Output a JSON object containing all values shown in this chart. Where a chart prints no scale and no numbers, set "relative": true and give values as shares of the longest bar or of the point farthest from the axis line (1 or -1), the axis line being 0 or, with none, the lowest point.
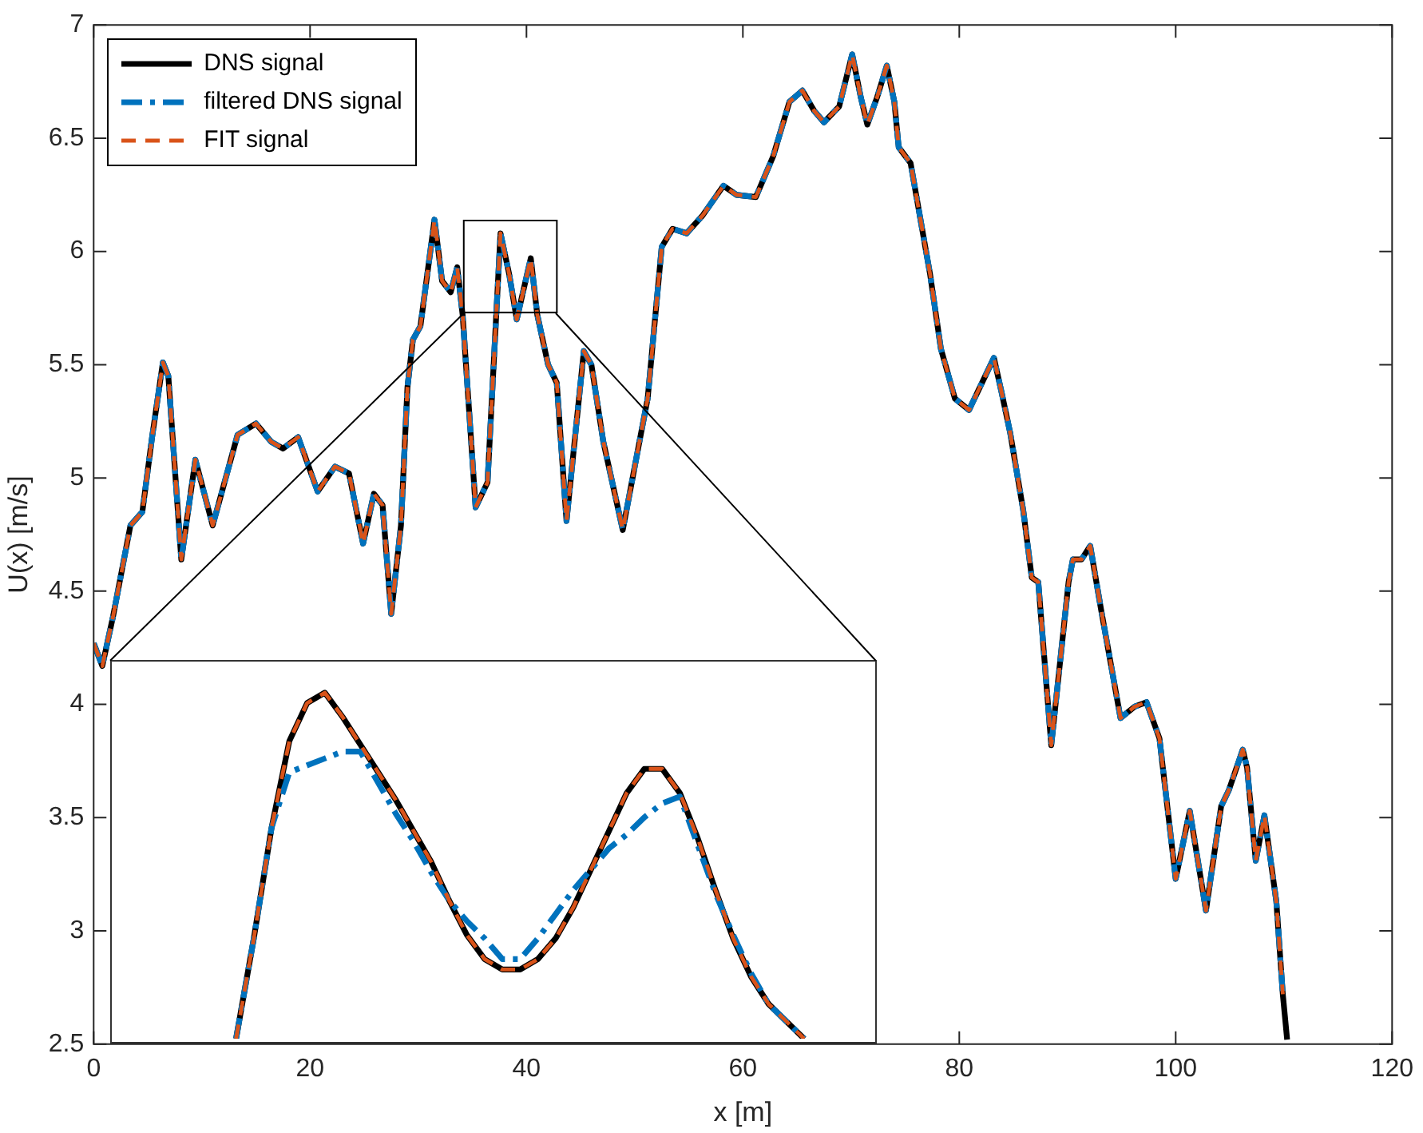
{
  "chart_data": [
    {
      "type": "line",
      "xlabel": "x [m]",
      "ylabel": "U(x) [m/s]",
      "xlim": [
        0,
        120
      ],
      "xticks": [
        0,
        20,
        40,
        60,
        80,
        100,
        120
      ],
      "ylim": [
        2.5,
        7
      ],
      "yticks": [
        2.5,
        3,
        3.5,
        4,
        4.5,
        5,
        5.5,
        6,
        6.5,
        7
      ],
      "grid": false,
      "legend": "top left",
      "marker": "none",
      "x": [
        0,
        0.8,
        1.8,
        3.4,
        4.5,
        5.4,
        6.4,
        6.9,
        8.1,
        9.4,
        11.0,
        13.3,
        15.0,
        16.4,
        17.5,
        18.9,
        20.7,
        22.3,
        23.6,
        24.9,
        25.9,
        26.7,
        27.5,
        28.4,
        29.0,
        29.5,
        30.2,
        31.5,
        32.2,
        33.0,
        33.6,
        34.1,
        35.3,
        36.4,
        37.6,
        38.4,
        39.1,
        40.4,
        41.0,
        42.0,
        42.8,
        43.7,
        45.3,
        46.0,
        47.1,
        48.9,
        50.6,
        51.2,
        52.5,
        53.5,
        54.8,
        56.3,
        58.2,
        59.4,
        61.2,
        62.8,
        64.3,
        65.5,
        66.6,
        67.5,
        68.9,
        70.1,
        70.9,
        71.5,
        72.4,
        73.3,
        74.0,
        74.4,
        75.5,
        76.6,
        77.3,
        78.3,
        79.6,
        80.9,
        83.2,
        83.9,
        84.7,
        85.9,
        86.7,
        87.3,
        88.5,
        90.1,
        90.5,
        91.3,
        92.1,
        93.1,
        94.9,
        96.2,
        97.3,
        98.5,
        100.0,
        101.3,
        102.8,
        104.2,
        104.9,
        106.2,
        106.6,
        107.4,
        108.2,
        109.3,
        109.9,
        110.3
      ],
      "series": [
        {
          "name": "DNS signal",
          "color": "#000000",
          "line_style": "solid",
          "values": [
            4.27,
            4.17,
            4.39,
            4.79,
            4.85,
            5.18,
            5.51,
            5.45,
            4.64,
            5.08,
            4.79,
            5.19,
            5.24,
            5.16,
            5.13,
            5.18,
            4.94,
            5.05,
            5.02,
            4.71,
            4.93,
            4.88,
            4.4,
            4.79,
            5.4,
            5.61,
            5.67,
            6.14,
            5.87,
            5.82,
            5.93,
            5.72,
            4.87,
            4.98,
            6.08,
            5.9,
            5.7,
            5.97,
            5.72,
            5.5,
            5.42,
            4.81,
            5.56,
            5.5,
            5.16,
            4.77,
            5.2,
            5.35,
            6.02,
            6.1,
            6.08,
            6.16,
            6.29,
            6.25,
            6.24,
            6.42,
            6.66,
            6.71,
            6.62,
            6.57,
            6.64,
            6.87,
            6.68,
            6.56,
            6.68,
            6.82,
            6.66,
            6.46,
            6.39,
            6.09,
            5.9,
            5.57,
            5.35,
            5.3,
            5.53,
            5.38,
            5.2,
            4.86,
            4.56,
            4.54,
            3.82,
            4.54,
            4.64,
            4.64,
            4.7,
            4.42,
            3.94,
            3.99,
            4.01,
            3.85,
            3.23,
            3.53,
            3.09,
            3.55,
            3.62,
            3.8,
            3.72,
            3.31,
            3.51,
            3.13,
            2.72,
            2.52
          ]
        },
        {
          "name": "filtered DNS signal",
          "color": "#0072bd",
          "line_style": "dashdot",
          "values": [
            4.27,
            4.17,
            4.39,
            4.79,
            4.85,
            5.18,
            5.51,
            5.45,
            4.64,
            5.08,
            4.79,
            5.19,
            5.24,
            5.16,
            5.13,
            5.18,
            4.94,
            5.05,
            5.02,
            4.71,
            4.93,
            4.88,
            4.4,
            4.79,
            5.4,
            5.61,
            5.67,
            6.14,
            5.87,
            5.82,
            5.93,
            5.72,
            4.87,
            4.98,
            6.08,
            5.9,
            5.7,
            5.97,
            5.72,
            5.5,
            5.42,
            4.81,
            5.56,
            5.5,
            5.16,
            4.77,
            5.2,
            5.35,
            6.02,
            6.1,
            6.08,
            6.16,
            6.29,
            6.25,
            6.24,
            6.42,
            6.66,
            6.71,
            6.62,
            6.57,
            6.64,
            6.87,
            6.68,
            6.56,
            6.68,
            6.82,
            6.66,
            6.46,
            6.39,
            6.09,
            5.9,
            5.57,
            5.35,
            5.3,
            5.53,
            5.38,
            5.2,
            4.86,
            4.56,
            4.54,
            3.82,
            4.54,
            4.64,
            4.64,
            4.7,
            4.42,
            3.94,
            3.99,
            4.01,
            3.85,
            3.23,
            3.53,
            3.09,
            3.55,
            3.62,
            3.8,
            3.72,
            3.31,
            3.51,
            3.13,
            2.72,
            null
          ]
        },
        {
          "name": "FIT signal",
          "color": "#d95319",
          "line_style": "dashed",
          "values": [
            4.27,
            4.17,
            4.39,
            4.79,
            4.85,
            5.18,
            5.51,
            5.45,
            4.64,
            5.08,
            4.79,
            5.19,
            5.24,
            5.16,
            5.13,
            5.18,
            4.94,
            5.05,
            5.02,
            4.71,
            4.93,
            4.88,
            4.4,
            4.79,
            5.4,
            5.61,
            5.67,
            6.14,
            5.87,
            5.82,
            5.93,
            5.72,
            4.87,
            4.98,
            6.08,
            5.9,
            5.7,
            5.97,
            5.72,
            5.5,
            5.42,
            4.81,
            5.56,
            5.5,
            5.16,
            4.77,
            5.2,
            5.35,
            6.02,
            6.1,
            6.08,
            6.16,
            6.29,
            6.25,
            6.24,
            6.42,
            6.66,
            6.71,
            6.62,
            6.57,
            6.64,
            6.87,
            6.68,
            6.56,
            6.68,
            6.82,
            6.66,
            6.46,
            6.39,
            6.09,
            5.9,
            5.57,
            5.35,
            5.3,
            5.53,
            5.38,
            5.2,
            4.86,
            4.56,
            4.54,
            3.82,
            4.54,
            4.64,
            4.64,
            4.7,
            4.42,
            3.94,
            3.99,
            4.01,
            3.85,
            3.23,
            3.53,
            3.09,
            3.55,
            3.62,
            3.8,
            3.72,
            3.31,
            3.51,
            3.13,
            2.72,
            null
          ]
        }
      ]
    },
    {
      "type": "line",
      "relative": true,
      "grid": false,
      "marker": "none",
      "categories": [
        null,
        null,
        null,
        null,
        null,
        null,
        null,
        null,
        null,
        null,
        null,
        null,
        null,
        null,
        null,
        null,
        null,
        null,
        null,
        null,
        null,
        null,
        null,
        null,
        null,
        null,
        null,
        null,
        null,
        null,
        null,
        null,
        null,
        null,
        null,
        null,
        null,
        null,
        null,
        null,
        null,
        null,
        null,
        null
      ],
      "series": [
        {
          "color": "#000000",
          "line_style": "solid",
          "values": [
            null,
            null,
            null,
            null,
            null,
            null,
            null,
            0,
            0.29,
            0.61,
            0.86,
            0.97,
            1,
            0.93,
            0.85,
            0.77,
            0.69,
            0.6,
            0.51,
            0.4,
            0.3,
            0.23,
            0.2,
            0.2,
            0.23,
            0.29,
            0.38,
            0.49,
            0.6,
            0.71,
            0.78,
            0.78,
            0.71,
            0.58,
            0.43,
            0.29,
            0.18,
            0.1,
            0.05,
            0,
            null,
            null,
            null,
            null
          ]
        },
        {
          "color": "#0072bd",
          "line_style": "dashdot",
          "values": [
            null,
            null,
            null,
            null,
            null,
            null,
            null,
            0,
            0.29,
            0.61,
            0.77,
            0.79,
            0.81,
            0.83,
            0.83,
            0.74,
            0.65,
            0.57,
            0.48,
            0.4,
            0.34,
            0.29,
            0.23,
            0.23,
            0.29,
            0.36,
            0.43,
            0.49,
            0.55,
            0.59,
            0.64,
            0.68,
            0.7,
            0.56,
            0.42,
            0.3,
            0.19,
            0.1,
            0.05,
            0,
            null,
            null,
            null,
            null
          ]
        },
        {
          "color": "#d95319",
          "line_style": "dashed",
          "values": [
            null,
            null,
            null,
            null,
            null,
            null,
            null,
            0,
            0.29,
            0.61,
            0.86,
            0.97,
            1,
            0.93,
            0.85,
            0.77,
            0.69,
            0.6,
            0.51,
            0.4,
            0.3,
            0.23,
            0.2,
            0.2,
            0.23,
            0.29,
            0.38,
            0.49,
            0.6,
            0.71,
            0.78,
            0.78,
            0.71,
            0.58,
            0.43,
            0.29,
            0.18,
            0.1,
            0.05,
            0,
            null,
            null,
            null,
            null
          ]
        }
      ]
    }
  ]
}
